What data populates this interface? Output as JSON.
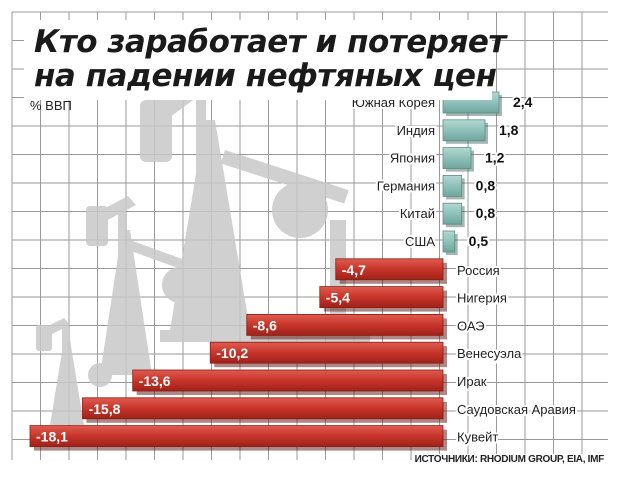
{
  "title": {
    "line1": "Кто заработает и потеряет",
    "line2": "на падении нефтяных цен"
  },
  "unit_label": "% ВВП",
  "source": "ИСТОЧНИКИ: RHODIUM GROUP, EIA, IMF",
  "colors": {
    "positive": "#8ec1b9",
    "negative": "#c8342a",
    "grid": "#9a9a9a",
    "background": "#ffffff"
  },
  "chart_data": {
    "type": "bar",
    "orientation": "horizontal",
    "categories": [
      "Южная Корея",
      "Индия",
      "Япония",
      "Германия",
      "Китай",
      "США",
      "Россия",
      "Нигерия",
      "ОАЭ",
      "Венесуэла",
      "Ирак",
      "Саудовская Аравия",
      "Кувейт"
    ],
    "values": [
      2.4,
      1.8,
      1.2,
      0.8,
      0.8,
      0.5,
      -4.7,
      -5.4,
      -8.6,
      -10.2,
      -13.6,
      -15.8,
      -18.1
    ],
    "value_labels": [
      "2,4",
      "1,8",
      "1,2",
      "0,8",
      "0,8",
      "0,5",
      "-4,7",
      "-5,4",
      "-8,6",
      "-10,2",
      "-13,6",
      "-15,8",
      "-18,1"
    ],
    "title": "Кто заработает и потеряет на падении нефтяных цен",
    "xlabel": "% ВВП",
    "xlim": [
      -18.1,
      2.4
    ],
    "grid": true
  }
}
